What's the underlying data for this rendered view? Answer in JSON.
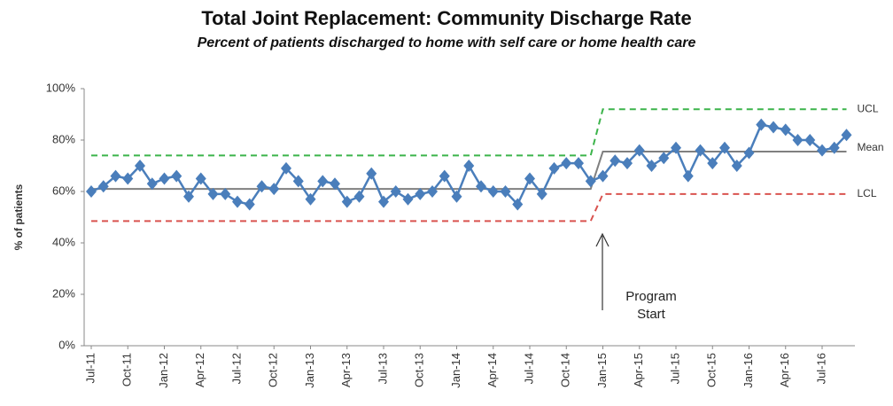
{
  "chart_data": {
    "type": "line",
    "title": "Total Joint Replacement:  Community Discharge Rate",
    "subtitle": "Percent of patients discharged to home with self care or home health care",
    "y_label": "% of patients",
    "annotation": "Program Start",
    "categories": [
      "Jul-11",
      null,
      null,
      "Oct-11",
      null,
      null,
      "Jan-12",
      null,
      null,
      "Apr-12",
      null,
      null,
      "Jul-12",
      null,
      null,
      "Oct-12",
      null,
      null,
      "Jan-13",
      null,
      null,
      "Apr-13",
      null,
      null,
      "Jul-13",
      null,
      null,
      "Oct-13",
      null,
      null,
      "Jan-14",
      null,
      null,
      "Apr-14",
      null,
      null,
      "Jul-14",
      null,
      null,
      "Oct-14",
      null,
      null,
      "Jan-15",
      null,
      null,
      "Apr-15",
      null,
      null,
      "Jul-15",
      null,
      null,
      "Oct-15",
      null,
      null,
      "Jan-16",
      null,
      null,
      "Apr-16",
      null,
      null,
      "Jul-16",
      null,
      null
    ],
    "series": [
      {
        "name": null,
        "color": "#4a7ebb",
        "marker": "diamond",
        "values": [
          60,
          62,
          66,
          65,
          70,
          63,
          65,
          66,
          58,
          65,
          59,
          59,
          56,
          55,
          62,
          61,
          69,
          64,
          57,
          64,
          63,
          56,
          58,
          67,
          56,
          60,
          57,
          59,
          60,
          66,
          58,
          70,
          62,
          60,
          60,
          55,
          65,
          59,
          69,
          71,
          71,
          64,
          66,
          72,
          71,
          76,
          70,
          73,
          77,
          66,
          76,
          71,
          77,
          70,
          75,
          86,
          85,
          84,
          80,
          80,
          76,
          77,
          82
        ]
      },
      {
        "name": "UCL",
        "color": "#3cb44b",
        "dashed": true,
        "values": [
          74,
          74,
          74,
          74,
          74,
          74,
          74,
          74,
          74,
          74,
          74,
          74,
          74,
          74,
          74,
          74,
          74,
          74,
          74,
          74,
          74,
          74,
          74,
          74,
          74,
          74,
          74,
          74,
          74,
          74,
          74,
          74,
          74,
          74,
          74,
          74,
          74,
          74,
          74,
          74,
          74,
          74,
          92,
          92,
          92,
          92,
          92,
          92,
          92,
          92,
          92,
          92,
          92,
          92,
          92,
          92,
          92,
          92,
          92,
          92,
          92,
          92,
          92
        ]
      },
      {
        "name": "Mean",
        "color": "#808080",
        "dashed": false,
        "values": [
          61,
          61,
          61,
          61,
          61,
          61,
          61,
          61,
          61,
          61,
          61,
          61,
          61,
          61,
          61,
          61,
          61,
          61,
          61,
          61,
          61,
          61,
          61,
          61,
          61,
          61,
          61,
          61,
          61,
          61,
          61,
          61,
          61,
          61,
          61,
          61,
          61,
          61,
          61,
          61,
          61,
          61,
          75.5,
          75.5,
          75.5,
          75.5,
          75.5,
          75.5,
          75.5,
          75.5,
          75.5,
          75.5,
          75.5,
          75.5,
          75.5,
          75.5,
          75.5,
          75.5,
          75.5,
          75.5,
          75.5,
          75.5,
          75.5
        ]
      },
      {
        "name": "LCL",
        "color": "#d9534f",
        "dashed": true,
        "values": [
          48.5,
          48.5,
          48.5,
          48.5,
          48.5,
          48.5,
          48.5,
          48.5,
          48.5,
          48.5,
          48.5,
          48.5,
          48.5,
          48.5,
          48.5,
          48.5,
          48.5,
          48.5,
          48.5,
          48.5,
          48.5,
          48.5,
          48.5,
          48.5,
          48.5,
          48.5,
          48.5,
          48.5,
          48.5,
          48.5,
          48.5,
          48.5,
          48.5,
          48.5,
          48.5,
          48.5,
          48.5,
          48.5,
          48.5,
          48.5,
          48.5,
          48.5,
          59,
          59,
          59,
          59,
          59,
          59,
          59,
          59,
          59,
          59,
          59,
          59,
          59,
          59,
          59,
          59,
          59,
          59,
          59,
          59,
          59
        ]
      }
    ],
    "ylim": [
      0,
      100
    ],
    "yticks": [
      {
        "value": 0,
        "label": "0%"
      },
      {
        "value": 20,
        "label": "20%"
      },
      {
        "value": 40,
        "label": "40%"
      },
      {
        "value": 60,
        "label": "60%"
      },
      {
        "value": 80,
        "label": "80%"
      },
      {
        "value": 100,
        "label": "100%"
      }
    ],
    "grid": false
  }
}
